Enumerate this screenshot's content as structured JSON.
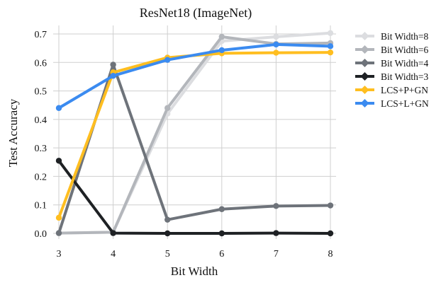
{
  "chart_data": {
    "type": "line",
    "title": "ResNet18 (ImageNet)",
    "xlabel": "Bit Width",
    "ylabel": "Test Accuracy",
    "x": [
      3,
      4,
      5,
      6,
      7,
      8
    ],
    "xlim": [
      3,
      8
    ],
    "ylim": [
      0.0,
      0.7
    ],
    "xticks": [
      "3",
      "4",
      "5",
      "6",
      "7",
      "8"
    ],
    "yticks": [
      "0.0",
      "0.1",
      "0.2",
      "0.3",
      "0.4",
      "0.5",
      "0.6",
      "0.7"
    ],
    "grid": true,
    "legend_position": "right",
    "series": [
      {
        "name": "Bit Width=8",
        "color": "#dcdde0",
        "values": [
          0.001,
          0.004,
          0.42,
          0.675,
          0.69,
          0.703
        ]
      },
      {
        "name": "Bit Width=6",
        "color": "#b3b6bb",
        "values": [
          0.001,
          0.004,
          0.44,
          0.69,
          0.665,
          0.668
        ]
      },
      {
        "name": "Bit Width=4",
        "color": "#6e737a",
        "values": [
          0.001,
          0.592,
          0.048,
          0.085,
          0.096,
          0.098
        ]
      },
      {
        "name": "Bit Width=3",
        "color": "#1e2124",
        "values": [
          0.255,
          0.001,
          0.0,
          0.0,
          0.001,
          0.0
        ]
      },
      {
        "name": "LCS+P+GN",
        "color": "#ffbe20",
        "values": [
          0.055,
          0.565,
          0.617,
          0.632,
          0.634,
          0.635
        ]
      },
      {
        "name": "LCS+L+GN",
        "color": "#3b8bf0",
        "values": [
          0.44,
          0.553,
          0.609,
          0.643,
          0.663,
          0.657
        ]
      }
    ]
  }
}
